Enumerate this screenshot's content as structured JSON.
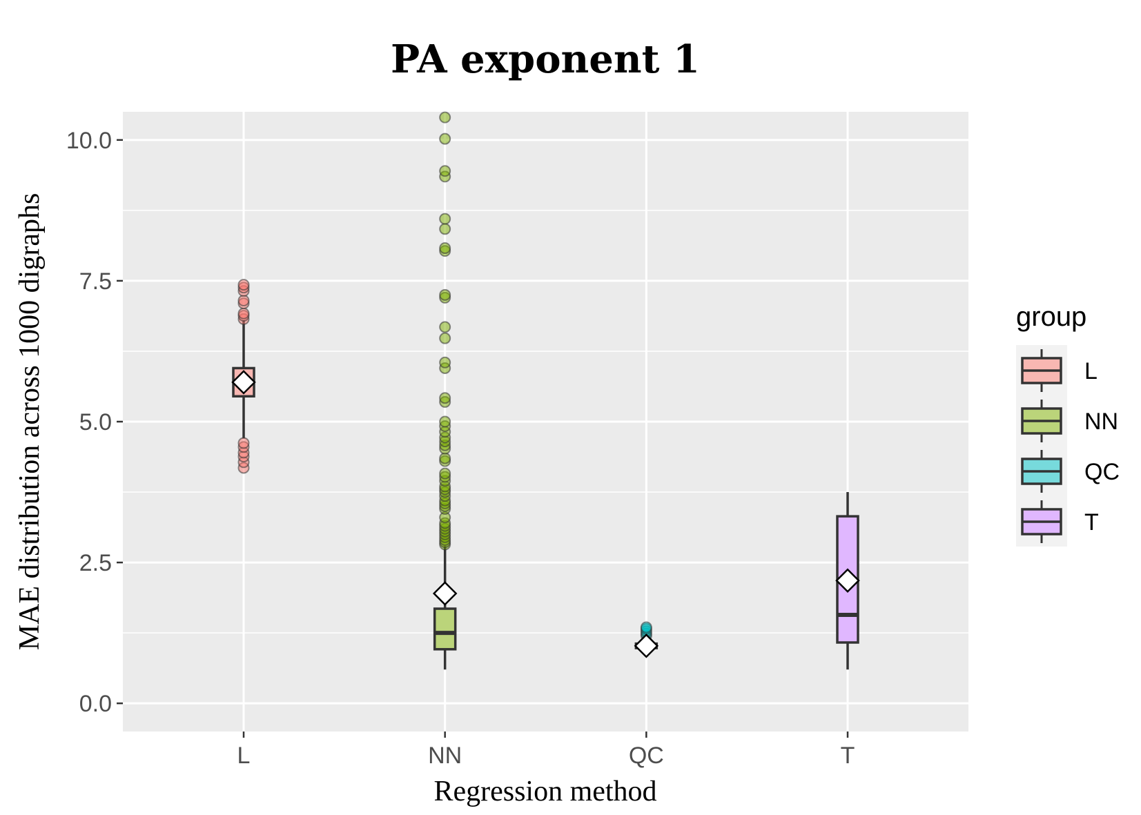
{
  "chart_data": {
    "type": "box",
    "title": "PA exponent 1",
    "xlabel": "Regression method",
    "ylabel": "MAE distribution across 1000 digraphs",
    "ylim": [
      -0.5,
      10.5
    ],
    "yticks": [
      0.0,
      2.5,
      5.0,
      7.5,
      10.0
    ],
    "ytick_labels": [
      "0.0",
      "2.5",
      "5.0",
      "7.5",
      "10.0"
    ],
    "categories": [
      "L",
      "NN",
      "QC",
      "T"
    ],
    "legend": {
      "title": "group",
      "position": "right",
      "entries": [
        "L",
        "NN",
        "QC",
        "T"
      ]
    },
    "series": [
      {
        "name": "L",
        "color": "#F8766D",
        "fill": "#F8B7B2",
        "whisker_low": 4.7,
        "q1": 5.45,
        "median": 5.72,
        "q3": 5.95,
        "whisker_high": 6.8,
        "mean": 5.7,
        "outliers": [
          4.18,
          4.28,
          4.38,
          4.45,
          4.55,
          4.62,
          6.82,
          6.88,
          6.92,
          7.1,
          7.15,
          7.32,
          7.38,
          7.43
        ]
      },
      {
        "name": "NN",
        "color": "#7CAE00",
        "fill": "#BBD47A",
        "whisker_low": 0.6,
        "q1": 0.96,
        "median": 1.25,
        "q3": 1.68,
        "whisker_high": 2.8,
        "mean": 1.95,
        "outliers": [
          2.82,
          2.86,
          2.9,
          2.95,
          3.0,
          3.05,
          3.1,
          3.15,
          3.2,
          3.3,
          3.45,
          3.5,
          3.55,
          3.6,
          3.68,
          3.75,
          3.8,
          3.85,
          3.95,
          4.02,
          4.08,
          4.3,
          4.35,
          4.52,
          4.58,
          4.65,
          4.72,
          4.82,
          4.92,
          5.0,
          5.35,
          5.42,
          5.95,
          6.05,
          6.48,
          6.68,
          7.2,
          7.25,
          8.03,
          8.08,
          8.42,
          8.6,
          9.35,
          9.45,
          10.02,
          10.4
        ]
      },
      {
        "name": "QC",
        "color": "#00BFC4",
        "fill": "#77DADC",
        "whisker_low": 0.95,
        "q1": 0.98,
        "median": 1.02,
        "q3": 1.06,
        "whisker_high": 1.1,
        "mean": 1.02,
        "outliers": [
          1.2,
          1.24,
          1.28,
          1.32,
          1.35
        ]
      },
      {
        "name": "T",
        "color": "#C77CFF",
        "fill": "#E0B7FF",
        "whisker_low": 0.6,
        "q1": 1.08,
        "median": 1.57,
        "q3": 3.32,
        "whisker_high": 3.75,
        "mean": 2.18,
        "outliers": []
      }
    ]
  }
}
